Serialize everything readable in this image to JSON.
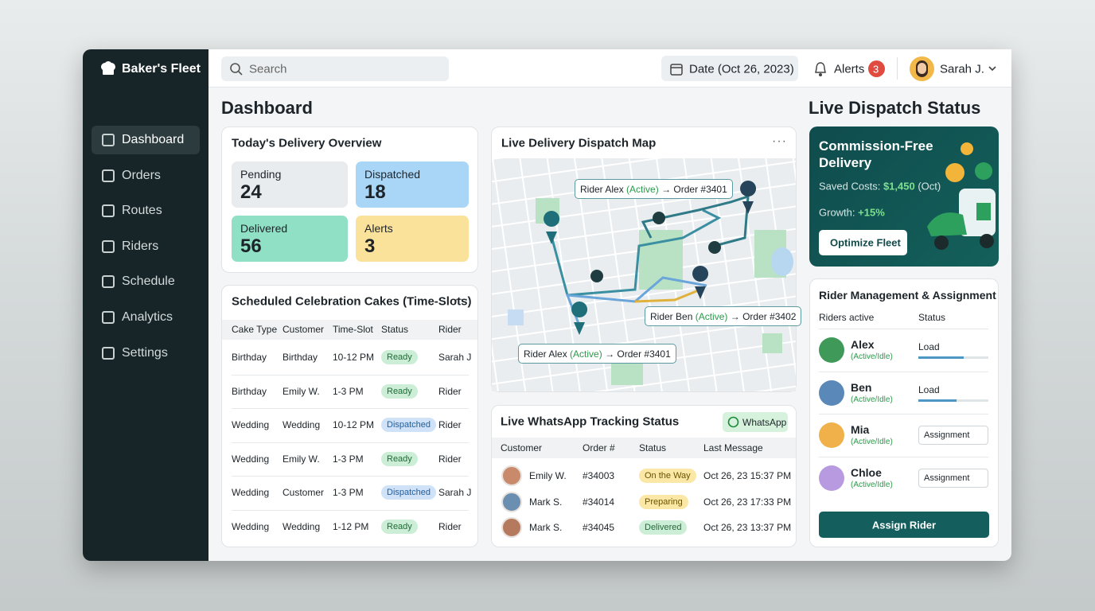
{
  "brand": "Baker's Fleet",
  "nav": [
    "Dashboard",
    "Orders",
    "Routes",
    "Riders",
    "Schedule",
    "Analytics",
    "Settings"
  ],
  "topbar": {
    "search": "Search",
    "date": "Date (Oct 26, 2023)",
    "alerts_label": "Alerts",
    "alerts_count": 3,
    "user": "Sarah J."
  },
  "page_title": "Dashboard",
  "overview": {
    "title": "Today's Delivery Overview",
    "stats": [
      {
        "label": "Pending",
        "value": 24,
        "color": "#e8ecef"
      },
      {
        "label": "Dispatched",
        "value": 18,
        "color": "#a9d6f7"
      },
      {
        "label": "Delivered",
        "value": 56,
        "color": "#8fe0c4"
      },
      {
        "label": "Alerts",
        "value": 3,
        "color": "#fbe29b"
      }
    ]
  },
  "cakes": {
    "title": "Scheduled Celebration Cakes (Time-Slots)",
    "columns": [
      "Cake Type",
      "Customer",
      "Time-Slot",
      "Status",
      "Rider"
    ],
    "rows": [
      [
        "Birthday",
        "Birthday",
        "10-12 PM",
        "Ready",
        "Sarah J"
      ],
      [
        "Birthday",
        "Emily W.",
        "1-3 PM",
        "Ready",
        "Rider"
      ],
      [
        "Wedding",
        "Wedding",
        "10-12 PM",
        "Dispatched",
        "Rider"
      ],
      [
        "Wedding",
        "Emily W.",
        "1-3 PM",
        "Ready",
        "Rider"
      ],
      [
        "Wedding",
        "Customer",
        "1-3 PM",
        "Dispatched",
        "Sarah J"
      ],
      [
        "Wedding",
        "Wedding",
        "1-12 PM",
        "Ready",
        "Rider"
      ]
    ],
    "status_colors": [
      "green",
      "green",
      "blue",
      "green",
      "blue",
      "green"
    ]
  },
  "map": {
    "title": "Live Delivery Dispatch Map",
    "labels": [
      {
        "rider": "Rider Alex",
        "state": "(Active)",
        "order": "→ Order #3401"
      },
      {
        "rider": "Rider Ben",
        "state": "(Active)",
        "order": "→ Order #3402"
      },
      {
        "rider": "Rider Alex",
        "state": "(Active)",
        "order": "→ Order #3401"
      }
    ]
  },
  "whatsapp": {
    "title": "Live WhatsApp Tracking Status",
    "badge": "WhatsApp",
    "columns": [
      "Customer",
      "Order #",
      "Status",
      "Last Message"
    ],
    "rows": [
      [
        "Emily W.",
        "#34003",
        "On the Way",
        "Oct 26, 23 15:37 PM"
      ],
      [
        "Mark S.",
        "#34014",
        "Preparing",
        "Oct 26, 23 17:33 PM"
      ],
      [
        "Mark S.",
        "#34045",
        "Delivered",
        "Oct 26, 23 13:37 PM"
      ]
    ],
    "status_colors": [
      "yellow",
      "yellow",
      "green"
    ]
  },
  "dispatch_title": "Live Dispatch Status",
  "promo": {
    "title": "Commission-Free Delivery",
    "saved_label": "Saved Costs:",
    "saved_value": "$1,450",
    "saved_suffix": "(Oct)",
    "growth_label": "Growth:",
    "growth_value": "+15%",
    "button": "Optimize Fleet"
  },
  "riders": {
    "title": "Rider Management & Assignment",
    "columns": [
      "Riders active",
      "Status"
    ],
    "rows": [
      {
        "name": "Alex",
        "state": "(Active/Idle)",
        "status": "Load",
        "load": 65
      },
      {
        "name": "Ben",
        "state": "(Active/Idle)",
        "status": "Load",
        "load": 55
      },
      {
        "name": "Mia",
        "state": "(Active/Idle)",
        "status": "Assignment"
      },
      {
        "name": "Chloe",
        "state": "(Active/Idle)",
        "status": "Assignment"
      }
    ],
    "button": "Assign Rider"
  }
}
